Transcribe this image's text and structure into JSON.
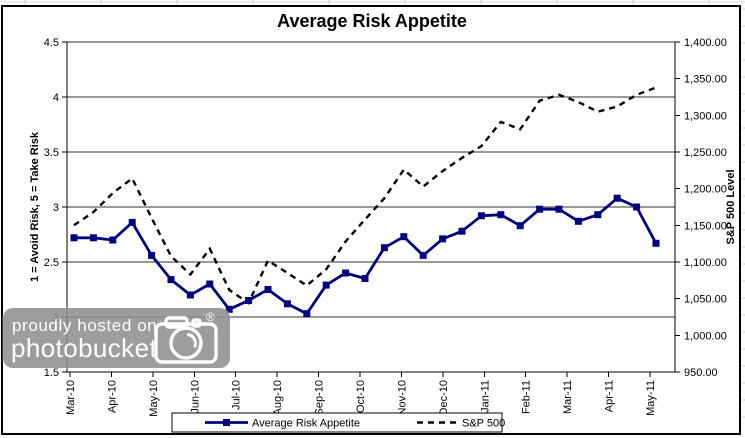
{
  "title": "Average Risk Appetite",
  "watermark": {
    "line1": "proudly hosted on",
    "line2": "photobucket",
    "registered": "®"
  },
  "chart_data": {
    "type": "line",
    "title": "Average Risk Appetite",
    "grid": true,
    "x_axis": {
      "tick_labels": [
        "Mar-10",
        "Apr-10",
        "May-10",
        "Jun-10",
        "Jul-10",
        "Aug-10",
        "Sep-10",
        "Oct-10",
        "Nov-10",
        "Dec-10",
        "Jan-11",
        "Feb-11",
        "Mar-11",
        "Apr-11",
        "May-11"
      ],
      "points_per_label": 2
    },
    "y_left": {
      "title": "1 = Avoid Risk, 5 = Take Risk",
      "tick_labels": [
        "4.5",
        "4",
        "3.5",
        "3",
        "2.5",
        "2",
        "1.5"
      ],
      "min": 1.5,
      "max": 4.5
    },
    "y_right": {
      "title": "S&P 500 Level",
      "tick_labels": [
        "1,400.00",
        "1,350.00",
        "1,300.00",
        "1,250.00",
        "1,200.00",
        "1,150.00",
        "1,100.00",
        "1,050.00",
        "1,000.00",
        "950.00"
      ],
      "min": 950,
      "max": 1400
    },
    "legend": {
      "position": "bottom",
      "entries": [
        "Average Risk Appetite",
        "S&P 500"
      ]
    },
    "series": [
      {
        "name": "Average Risk Appetite",
        "axis": "left",
        "color": "#000080",
        "line_style": "solid",
        "marker": "square",
        "values": [
          2.72,
          2.72,
          2.7,
          2.86,
          2.56,
          2.34,
          2.2,
          2.3,
          2.07,
          2.15,
          2.25,
          2.12,
          2.03,
          2.29,
          2.4,
          2.35,
          2.63,
          2.73,
          2.56,
          2.71,
          2.78,
          2.92,
          2.93,
          2.83,
          2.98,
          2.98,
          2.87,
          2.93,
          3.08,
          3.0,
          2.67
        ]
      },
      {
        "name": "S&P 500",
        "axis": "right",
        "color": "#000000",
        "line_style": "dashed",
        "marker": "none",
        "values": [
          1150,
          1168,
          1194,
          1214,
          1160,
          1108,
          1083,
          1118,
          1062,
          1044,
          1102,
          1085,
          1068,
          1090,
          1128,
          1158,
          1187,
          1226,
          1203,
          1224,
          1242,
          1258,
          1291,
          1281,
          1320,
          1328,
          1318,
          1305,
          1312,
          1328,
          1338
        ]
      }
    ]
  }
}
